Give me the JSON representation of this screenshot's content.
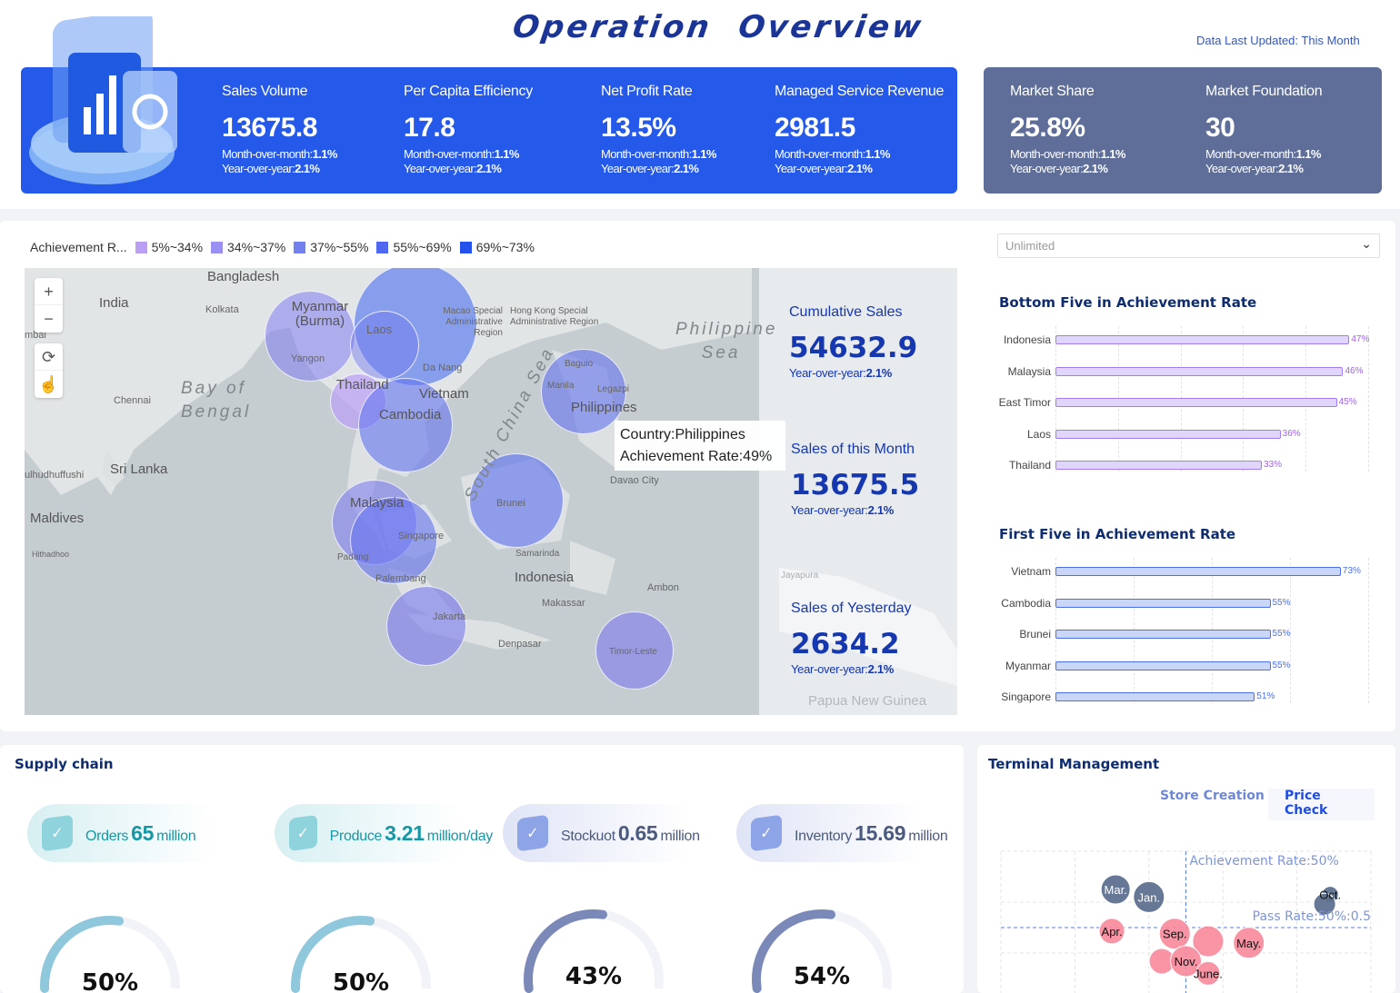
{
  "header": {
    "title": "Operation  Overview",
    "updated": "Data Last Updated: This Month"
  },
  "kpis": [
    {
      "label": "Sales Volume",
      "value": "13675.8",
      "mom_label": "Month-over-month:",
      "mom": "1.1%",
      "yoy_label": "Year-over-year:",
      "yoy": "2.1%"
    },
    {
      "label": "Per Capita Efficiency",
      "value": "17.8",
      "mom_label": "Month-over-month:",
      "mom": "1.1%",
      "yoy_label": "Year-over-year:",
      "yoy": "2.1%"
    },
    {
      "label": "Net Profit Rate",
      "value": "13.5%",
      "mom_label": "Month-over-month:",
      "mom": "1.1%",
      "yoy_label": "Year-over-year:",
      "yoy": "2.1%"
    },
    {
      "label": "Managed Service Revenue",
      "value": "2981.5",
      "mom_label": "Month-over-month:",
      "mom": "1.1%",
      "yoy_label": "Year-over-year:",
      "yoy": "2.1%"
    },
    {
      "label": "Market Share",
      "value": "25.8%",
      "mom_label": "Month-over-month:",
      "mom": "1.1%",
      "yoy_label": "Year-over-year:",
      "yoy": "2.1%"
    },
    {
      "label": "Market Foundation",
      "value": "30",
      "mom_label": "Month-over-month:",
      "mom": "1.1%",
      "yoy_label": "Year-over-year:",
      "yoy": "2.1%"
    }
  ],
  "legend": {
    "title": "Achievement R...",
    "items": [
      {
        "label": "5%~34%",
        "color": "#b9a0f5"
      },
      {
        "label": "34%~37%",
        "color": "#9a8ff2"
      },
      {
        "label": "37%~55%",
        "color": "#7381ef"
      },
      {
        "label": "55%~69%",
        "color": "#4f68ef"
      },
      {
        "label": "69%~73%",
        "color": "#2451ec"
      }
    ]
  },
  "map": {
    "labels": [
      "Bangladesh",
      "India",
      "Kolkata",
      "Myanmar (Burma)",
      "Yangon",
      "Laos",
      "Macao Special Administrative Region",
      "Hong Kong Special Administrative Region",
      "Da Nang",
      "Thailand",
      "Vietnam",
      "Cambodia",
      "Bay of Bengal",
      "Chennai",
      "Sri Lanka",
      "Maldives",
      "Hithadhoo",
      "South China Sea",
      "Philippine Sea",
      "Baguio",
      "Manila",
      "Philippines",
      "Davao City",
      "Brunei",
      "Malaysia",
      "Singapore",
      "Samarinda",
      "Palembang",
      "Indonesia",
      "Makassar",
      "Ambon",
      "Jakarta",
      "Denpasar",
      "Timor-Leste",
      "Jayapura",
      "Papua New Guinea",
      "Padang",
      "Legazpi",
      "ulhudhuffushi",
      "mbai"
    ],
    "controls": {
      "zoom_in": "+",
      "zoom_out": "−"
    },
    "tooltip": {
      "country": "Country:Philippines",
      "rate": "Achievement Rate:49%"
    }
  },
  "side_stats": [
    {
      "label": "Cumulative Sales",
      "value": "54632.9",
      "yoy_label": "Year-over-year:",
      "yoy": "2.1%"
    },
    {
      "label": "Sales of this Month",
      "value": "13675.5",
      "yoy_label": "Year-over-year:",
      "yoy": "2.1%"
    },
    {
      "label": "Sales of Yesterday",
      "value": "2634.2",
      "yoy_label": "Year-over-year:",
      "yoy": "2.1%"
    }
  ],
  "dropdown": {
    "value": "Unlimited"
  },
  "chart_data": [
    {
      "type": "bar",
      "orientation": "horizontal",
      "title": "Bottom Five in Achievement Rate",
      "categories": [
        "Indonesia",
        "Malaysia",
        "East Timor",
        "Laos",
        "Thailand"
      ],
      "values": [
        47,
        46,
        45,
        36,
        33
      ],
      "value_labels": [
        "47%",
        "46%",
        "45%",
        "36%",
        "33%"
      ],
      "xlim": [
        0,
        50
      ],
      "grid": true,
      "color": "#a872f0"
    },
    {
      "type": "bar",
      "orientation": "horizontal",
      "title": "First Five in Achievement Rate",
      "categories": [
        "Vietnam",
        "Cambodia",
        "Brunei",
        "Myanmar",
        "Singapore"
      ],
      "values": [
        73,
        55,
        55,
        55,
        51
      ],
      "value_labels": [
        "73%",
        "55%",
        "55%",
        "55%",
        "51%"
      ],
      "xlim": [
        0,
        80
      ],
      "grid": true,
      "color": "#4a6fe6"
    },
    {
      "type": "scatter",
      "title": "",
      "xlim": [
        0,
        100
      ],
      "ylim": [
        0.35,
        0.65
      ],
      "grid": true,
      "ref_lines": [
        {
          "axis": "x",
          "value": 50,
          "label": "Achievement Rate:50%"
        },
        {
          "axis": "y",
          "value": 0.5,
          "label": "Pass Rate:50%:0.5"
        }
      ],
      "points": [
        {
          "label": "Mar.",
          "x": 31,
          "y": 0.575,
          "size": 16,
          "color": "#5f7190"
        },
        {
          "label": "Jan.",
          "x": 40,
          "y": 0.56,
          "size": 17,
          "color": "#5f7190"
        },
        {
          "label": "Oct.",
          "x": 89,
          "y": 0.565,
          "size": 9,
          "color": "#5f7190"
        },
        {
          "label": "",
          "x": 87.5,
          "y": 0.546,
          "size": 12,
          "color": "#5f7190"
        },
        {
          "label": "Apr.",
          "x": 30,
          "y": 0.493,
          "size": 14,
          "color": "#f7889a"
        },
        {
          "label": "Sep.",
          "x": 47,
          "y": 0.488,
          "size": 17,
          "color": "#f7889a"
        },
        {
          "label": "",
          "x": 56,
          "y": 0.473,
          "size": 17,
          "color": "#f7889a"
        },
        {
          "label": "",
          "x": 43.5,
          "y": 0.434,
          "size": 14,
          "color": "#f7889a"
        },
        {
          "label": "Nov.",
          "x": 50,
          "y": 0.434,
          "size": 17,
          "color": "#f7889a"
        },
        {
          "label": "May.",
          "x": 67,
          "y": 0.47,
          "size": 17,
          "color": "#f7889a"
        },
        {
          "label": "June.",
          "x": 56,
          "y": 0.41,
          "size": 13,
          "color": "#f7889a"
        }
      ]
    },
    {
      "type": "gauge",
      "values": [
        50,
        50,
        43,
        54
      ],
      "value_labels": [
        "50%",
        "50%",
        "43%",
        "54%"
      ]
    }
  ],
  "supply": {
    "title": "Supply chain",
    "items": [
      {
        "label": "Orders",
        "value": "65",
        "unit": "million",
        "color": "#1597a5"
      },
      {
        "label": "Produce",
        "value": "3.21",
        "unit": "million/day",
        "color": "#1597a5"
      },
      {
        "label": "Stockuot",
        "value": "0.65",
        "unit": "million",
        "color": "#4b5a7e"
      },
      {
        "label": "Inventory",
        "value": "15.69",
        "unit": "million",
        "color": "#4b5a7e"
      }
    ]
  },
  "terminal": {
    "title": "Terminal Management",
    "tabs": [
      "Store Creation",
      "Price Check"
    ],
    "active_tab": "Price Check"
  }
}
